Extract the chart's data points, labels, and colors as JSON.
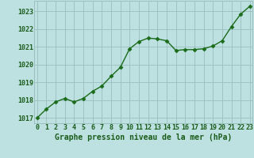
{
  "x": [
    0,
    1,
    2,
    3,
    4,
    5,
    6,
    7,
    8,
    9,
    10,
    11,
    12,
    13,
    14,
    15,
    16,
    17,
    18,
    19,
    20,
    21,
    22,
    23
  ],
  "y": [
    1017.0,
    1017.5,
    1017.9,
    1018.1,
    1017.9,
    1018.1,
    1018.5,
    1018.8,
    1019.35,
    1019.85,
    1020.9,
    1021.3,
    1021.5,
    1021.45,
    1021.35,
    1020.8,
    1020.85,
    1020.85,
    1020.9,
    1021.05,
    1021.35,
    1022.15,
    1022.85,
    1023.3
  ],
  "ylim": [
    1016.7,
    1023.6
  ],
  "yticks": [
    1017,
    1018,
    1019,
    1020,
    1021,
    1022,
    1023
  ],
  "xlim": [
    -0.3,
    23.3
  ],
  "xticks": [
    0,
    1,
    2,
    3,
    4,
    5,
    6,
    7,
    8,
    9,
    10,
    11,
    12,
    13,
    14,
    15,
    16,
    17,
    18,
    19,
    20,
    21,
    22,
    23
  ],
  "xlabel": "Graphe pression niveau de la mer (hPa)",
  "line_color": "#1a6b1a",
  "marker": "D",
  "marker_size": 2.5,
  "background_color": "#bde0e0",
  "grid_color": "#9bbfbf",
  "xlabel_color": "#1a5c1a",
  "tick_color": "#1a5c1a",
  "xlabel_fontsize": 7.0,
  "tick_fontsize": 6.0,
  "linewidth": 1.0
}
